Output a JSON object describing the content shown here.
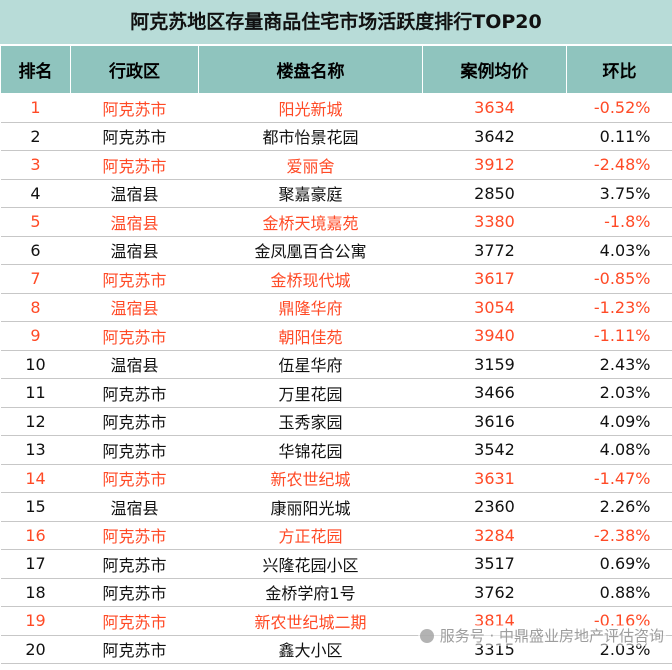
{
  "title": "阿克苏地区存量商品住宅市场活跃度排行TOP20",
  "headers": [
    "排名",
    "行政区",
    "楼盘名称",
    "案例均价",
    "环比"
  ],
  "rows": [
    {
      "rank": "1",
      "district": "阿克苏市",
      "name": "阳光新城",
      "price": "3634",
      "change": "-0.52%",
      "highlight": true
    },
    {
      "rank": "2",
      "district": "阿克苏市",
      "name": "都市怡景花园",
      "price": "3642",
      "change": "0.11%",
      "highlight": false
    },
    {
      "rank": "3",
      "district": "阿克苏市",
      "name": "爱丽舍",
      "price": "3912",
      "change": "-2.48%",
      "highlight": true
    },
    {
      "rank": "4",
      "district": "温宿县",
      "name": "聚嘉豪庭",
      "price": "2850",
      "change": "3.75%",
      "highlight": false
    },
    {
      "rank": "5",
      "district": "温宿县",
      "name": "金桥天境嘉苑",
      "price": "3380",
      "change": "-1.8%",
      "highlight": true
    },
    {
      "rank": "6",
      "district": "温宿县",
      "name": "金凤凰百合公寓",
      "price": "3772",
      "change": "4.03%",
      "highlight": false
    },
    {
      "rank": "7",
      "district": "阿克苏市",
      "name": "金桥现代城",
      "price": "3617",
      "change": "-0.85%",
      "highlight": true
    },
    {
      "rank": "8",
      "district": "温宿县",
      "name": "鼎隆华府",
      "price": "3054",
      "change": "-1.23%",
      "highlight": true
    },
    {
      "rank": "9",
      "district": "阿克苏市",
      "name": "朝阳佳苑",
      "price": "3940",
      "change": "-1.11%",
      "highlight": true
    },
    {
      "rank": "10",
      "district": "温宿县",
      "name": "伍星华府",
      "price": "3159",
      "change": "2.43%",
      "highlight": false
    },
    {
      "rank": "11",
      "district": "阿克苏市",
      "name": "万里花园",
      "price": "3466",
      "change": "2.03%",
      "highlight": false
    },
    {
      "rank": "12",
      "district": "阿克苏市",
      "name": "玉秀家园",
      "price": "3616",
      "change": "4.09%",
      "highlight": false
    },
    {
      "rank": "13",
      "district": "阿克苏市",
      "name": "华锦花园",
      "price": "3542",
      "change": "4.08%",
      "highlight": false
    },
    {
      "rank": "14",
      "district": "阿克苏市",
      "name": "新农世纪城",
      "price": "3631",
      "change": "-1.47%",
      "highlight": true
    },
    {
      "rank": "15",
      "district": "温宿县",
      "name": "康丽阳光城",
      "price": "2360",
      "change": "2.26%",
      "highlight": false
    },
    {
      "rank": "16",
      "district": "阿克苏市",
      "name": "方正花园",
      "price": "3284",
      "change": "-2.38%",
      "highlight": true
    },
    {
      "rank": "17",
      "district": "阿克苏市",
      "name": "兴隆花园小区",
      "price": "3517",
      "change": "0.69%",
      "highlight": false
    },
    {
      "rank": "18",
      "district": "阿克苏市",
      "name": "金桥学府1号",
      "price": "3762",
      "change": "0.88%",
      "highlight": false
    },
    {
      "rank": "19",
      "district": "阿克苏市",
      "name": "新农世纪城二期",
      "price": "3814",
      "change": "-0.16%",
      "highlight": true
    },
    {
      "rank": "20",
      "district": "阿克苏市",
      "name": "鑫大小区",
      "price": "3315",
      "change": "2.03%",
      "highlight": false
    }
  ],
  "watermark": "服务号 · 中鼎盛业房地产评估咨询",
  "colors": {
    "title_bg": "#b8dcd8",
    "header_bg": "#8fc4be",
    "highlight_text": "#ff4a26",
    "normal_text": "#111111"
  }
}
